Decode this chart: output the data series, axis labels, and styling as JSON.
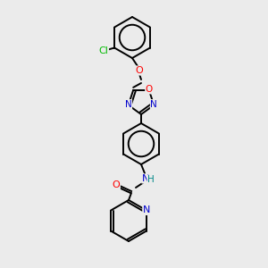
{
  "bg_color": "#ebebeb",
  "bond_color": "#000000",
  "atom_colors": {
    "O": "#ff0000",
    "N": "#0000cc",
    "Cl": "#00bb00",
    "NH": "#000000",
    "H": "#008888"
  },
  "figsize": [
    3.0,
    3.0
  ],
  "dpi": 100
}
